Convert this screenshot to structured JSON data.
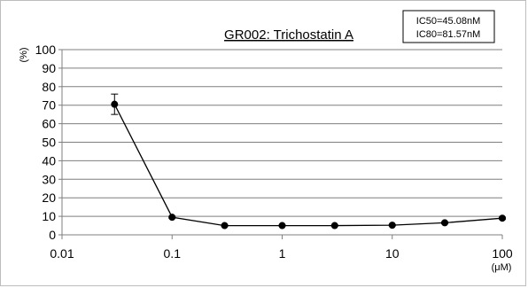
{
  "chart_data": {
    "type": "line",
    "title": "GR002: Trichostatin A",
    "annotation": [
      "IC50=45.08nM",
      "IC80=81.57nM"
    ],
    "ylabel": "(%)",
    "xunit": "(μM)",
    "xscale": "log",
    "xlim": [
      0.01,
      100
    ],
    "ylim": [
      0,
      100
    ],
    "y_ticks": [
      "0",
      "10",
      "20",
      "30",
      "40",
      "50",
      "60",
      "70",
      "80",
      "90",
      "100"
    ],
    "x_ticks": [
      "0.01",
      "0.1",
      "1",
      "10",
      "100"
    ],
    "grid": "horizontal",
    "legend": "none",
    "series": [
      {
        "x": [
          0.03,
          0.1,
          0.3,
          1,
          3,
          10,
          30,
          100
        ],
        "y": [
          70.5,
          9.5,
          5.0,
          5.0,
          5.0,
          5.2,
          6.5,
          9.0
        ],
        "error": [
          5.5,
          0.5,
          0.3,
          0.3,
          0.3,
          0.3,
          0.5,
          0.5
        ]
      }
    ],
    "colors": {
      "line": "#000000",
      "grid": "#7f7f7f",
      "axis": "#7f7f7f"
    }
  }
}
